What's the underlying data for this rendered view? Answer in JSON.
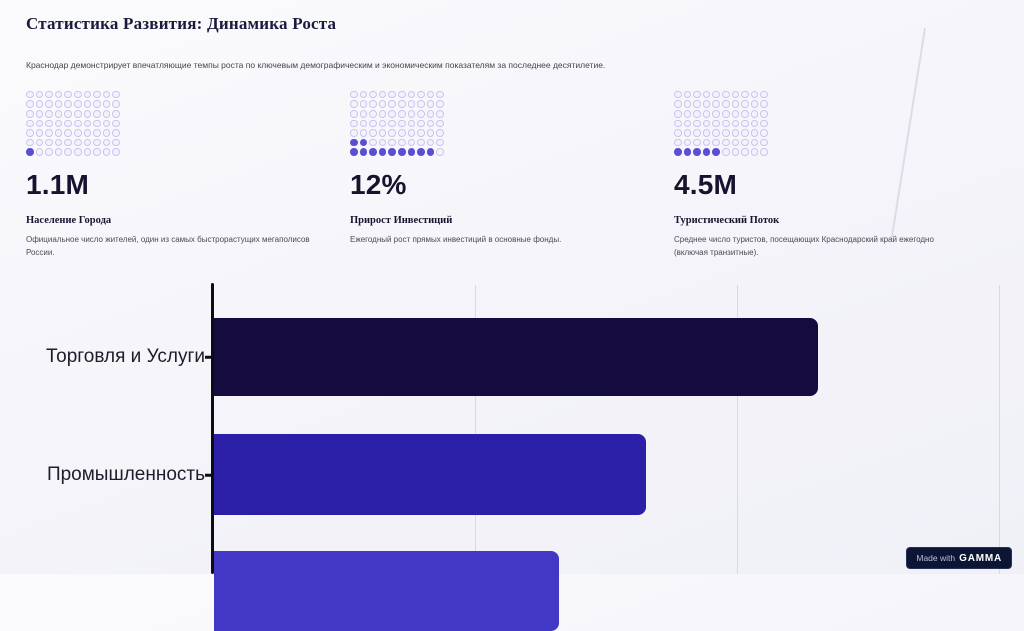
{
  "page": {
    "title": "Статистика Развития: Динамика Роста",
    "subtitle": "Краснодар демонстрирует впечатляющие темпы роста по ключевым демографическим и экономическим показателям за последнее десятилетие."
  },
  "stats": [
    {
      "value": "1.1M",
      "label": "Население Города",
      "description": "Официальное число жителей, один из самых быстрорастущих мегаполисов России.",
      "grid": {
        "rows": 7,
        "cols": 10,
        "filled_by_row": [
          0,
          0,
          0,
          0,
          0,
          0,
          1
        ]
      }
    },
    {
      "value": "12%",
      "label": "Прирост Инвестиций",
      "description": "Ежегодный рост прямых инвестиций в основные фонды.",
      "grid": {
        "rows": 7,
        "cols": 10,
        "filled_by_row": [
          0,
          0,
          0,
          0,
          0,
          2,
          9
        ]
      }
    },
    {
      "value": "4.5M",
      "label": "Туристический Поток",
      "description": "Среднее число туристов, посещающих Краснодарский край ежегодно (включая транзитные).",
      "grid": {
        "rows": 7,
        "cols": 10,
        "filled_by_row": [
          0,
          0,
          0,
          0,
          0,
          0,
          5
        ]
      }
    }
  ],
  "chart_data": {
    "type": "bar",
    "orientation": "horizontal",
    "categories": [
      "Торговля и Услуги",
      "Промышленность",
      ""
    ],
    "values": [
      77,
      55,
      44
    ],
    "xlim": [
      0,
      100
    ],
    "gridlines": [
      33.3,
      66.7,
      100
    ],
    "colors": [
      "#160b3e",
      "#2a1fa6",
      "#4338c6"
    ],
    "title": "",
    "xlabel": "",
    "ylabel": ""
  },
  "colors": {
    "accent_fill": "#5b4ed2",
    "dot_outline": "#c9c4ee",
    "axis": "#0c0c16",
    "badge_bg": "#0d1535"
  },
  "badge": {
    "prefix": "Made with",
    "brand": "GAMMA"
  }
}
